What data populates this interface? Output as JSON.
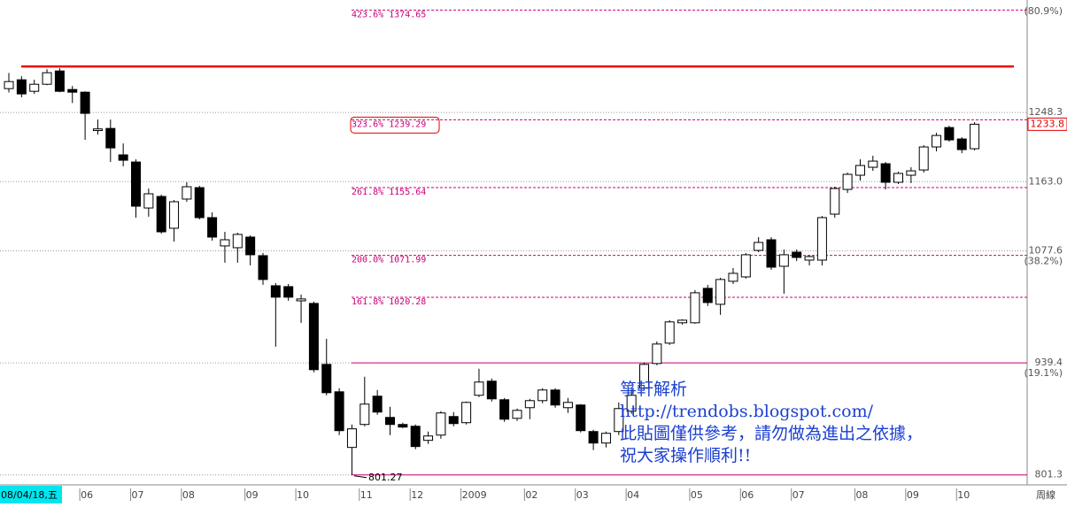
{
  "chart_data": {
    "type": "candlestick",
    "open": [
      1277.7,
      1288.6,
      1274.4,
      1283.1,
      1299.5,
      1276.6,
      1273.3,
      1226,
      1228.6,
      1196,
      1187.2,
      1130.5,
      1144.7,
      1105.5,
      1141.5,
      1155.6,
      1118.6,
      1083.7,
      1081.5,
      1094.6,
      1071.7,
      1034.6,
      1033.5,
      1016,
      1012.8,
      937.6,
      903.8,
      835.2,
      863.5,
      898.4,
      872.2,
      863.5,
      861.3,
      843.9,
      850.4,
      873.3,
      865.7,
      899.5,
      916.9,
      894,
      871.1,
      884.2,
      892.9,
      906,
      884.2,
      887.5,
      854.8,
      840.6,
      854.8,
      879.9,
      908.2,
      938.7,
      963.8,
      988.9,
      988.9,
      1031.4,
      1011.7,
      1040.1,
      1045.5,
      1078.2,
      1091.3,
      1058.6,
      1076,
      1066.2,
      1066.2,
      1122.9,
      1153.4,
      1170.9,
      1180.7,
      1185.1,
      1162.2,
      1170.9,
      1177.4,
      1205.8,
      1229.7,
      1215.6,
      1203.6
    ],
    "high": [
      1297,
      1293,
      1288.6,
      1301.7,
      1302.8,
      1281,
      1274.4,
      1239.6,
      1239.6,
      1210.1,
      1190.5,
      1154.5,
      1146.9,
      1140.4,
      1162.2,
      1157.8,
      1125.1,
      1101.1,
      1100,
      1096.8,
      1075,
      1037.9,
      1036.8,
      1023.7,
      1015,
      969.2,
      908.2,
      863.5,
      922.4,
      906,
      885.3,
      865.7,
      863.5,
      854.8,
      879.9,
      878.8,
      891.8,
      932.2,
      920.2,
      896.2,
      883.1,
      895.1,
      908.2,
      908.2,
      896.2,
      888.6,
      857,
      854.8,
      890.7,
      907.1,
      939.8,
      966,
      992.1,
      993.2,
      1029.2,
      1035.7,
      1044.4,
      1056.4,
      1075,
      1094.6,
      1094.6,
      1079.3,
      1079.3,
      1071.7,
      1120.7,
      1156.7,
      1174.1,
      1190.5,
      1194.9,
      1187.2,
      1175.2,
      1180.7,
      1207.9,
      1223.2,
      1231.9,
      1217.8,
      1236.3
    ],
    "low": [
      1273,
      1267,
      1271.2,
      1282,
      1273.3,
      1260,
      1214.5,
      1221,
      1187.2,
      1181.8,
      1118.6,
      1119.7,
      1098.9,
      1089.1,
      1138.2,
      1116.4,
      1090.2,
      1063,
      1063,
      1059.7,
      1035.7,
      959.4,
      1016.1,
      988.8,
      927.8,
      899.5,
      850.4,
      801.27,
      861.3,
      875.5,
      850.4,
      859,
      833,
      839.5,
      846,
      861.3,
      863.5,
      897.3,
      891.8,
      866.8,
      867.9,
      870,
      889.7,
      884.2,
      877.7,
      853.7,
      831.9,
      835.2,
      850.4,
      876.6,
      906,
      936.5,
      961.6,
      986.7,
      987.8,
      1009.6,
      998.7,
      1036.8,
      1043.4,
      1076,
      1054.3,
      1024.8,
      1065,
      1059.7,
      1059.7,
      1118.6,
      1149.1,
      1164.3,
      1176.3,
      1153.4,
      1160,
      1161.1,
      1174.1,
      1200.3,
      1212.3,
      1198.1,
      1201.4
    ],
    "close": [
      1286.4,
      1271.2,
      1283.1,
      1297.3,
      1274.4,
      1273.3,
      1247.2,
      1228,
      1204.6,
      1189.4,
      1132.7,
      1148,
      1101.1,
      1138.2,
      1156.7,
      1118.6,
      1094.6,
      1091.3,
      1097.9,
      1072.8,
      1042.3,
      1020.5,
      1020.5,
      1018.3,
      931.1,
      902.7,
      855.9,
      858.1,
      888.6,
      878.8,
      863.5,
      860.3,
      836.3,
      849.3,
      877.7,
      864.6,
      890.7,
      915.8,
      895.1,
      870,
      880.9,
      892.9,
      906,
      887.5,
      890.7,
      855.9,
      840.6,
      852.6,
      883.1,
      899.5,
      937.6,
      962.7,
      990,
      992.1,
      1025.9,
      1013.9,
      1042.3,
      1049.9,
      1072.8,
      1088,
      1057.5,
      1072.8,
      1069.5,
      1070.6,
      1118.6,
      1154.5,
      1172,
      1182.9,
      1188.3,
      1162.2,
      1173.1,
      1176.3,
      1205.8,
      1219.9,
      1214.5,
      1202.5,
      1233.8
    ],
    "up_color": "#ffffff",
    "down_color": "#000000",
    "ylim": [
      789,
      1387
    ],
    "yticks": [
      1248.3,
      {
        "value": 1163,
        "label": "1163.0"
      },
      {
        "value": 1077.6,
        "label": "1077.6",
        "note": "(38.2%)"
      },
      {
        "value": 939.4,
        "label": "939.4",
        "note": "(19.1%)"
      },
      801.3
    ],
    "top_note": "(80.9%)",
    "grid": true,
    "start_label": "08/04/18,五",
    "end_label": "周線",
    "period_labels": [
      {
        "value": 6,
        "label": "06"
      },
      {
        "value": 10,
        "label": "07"
      },
      {
        "value": 14,
        "label": "08"
      },
      {
        "value": 19,
        "label": "09"
      },
      {
        "value": 23,
        "label": "10"
      },
      {
        "value": 28,
        "label": "11"
      },
      {
        "value": 32,
        "label": "12"
      },
      {
        "value": 36,
        "label": "2009"
      },
      {
        "value": 41,
        "label": "02"
      },
      {
        "value": 45,
        "label": "03"
      },
      {
        "value": 49,
        "label": "04"
      },
      {
        "value": 54,
        "label": "05"
      },
      {
        "value": 58,
        "label": "06"
      },
      {
        "value": 62,
        "label": "07"
      },
      {
        "value": 67,
        "label": "08"
      },
      {
        "value": 71,
        "label": "09"
      },
      {
        "value": 75,
        "label": "10"
      }
    ],
    "fib_color": "#cc0077",
    "fib_levels": [
      {
        "value": 1374.65,
        "label": "423.6% 1374.65"
      },
      {
        "value": 1239.29,
        "label": "323.6% 1239.29"
      },
      {
        "value": 1155.64,
        "label": "261.8% 1155.64"
      },
      {
        "value": 1071.99,
        "label": "200.0% 1071.99"
      },
      {
        "value": 1020.28,
        "label": "161.8% 1020.28"
      }
    ],
    "highlighted_level": 1,
    "swing_lines": [
      939.4,
      801.27
    ],
    "low_label": {
      "value": 801.27,
      "label": "801.27"
    },
    "resistance": {
      "value": 1305,
      "color": "#ee0000"
    },
    "last_price": {
      "value": 1233.8,
      "label": "1233.8"
    },
    "watermark": [
      "箏軒解析",
      "http://trendobs.blogspot.com/",
      "此貼圖僅供參考，請勿做為進出之依據，",
      "祝大家操作順利!!"
    ]
  }
}
